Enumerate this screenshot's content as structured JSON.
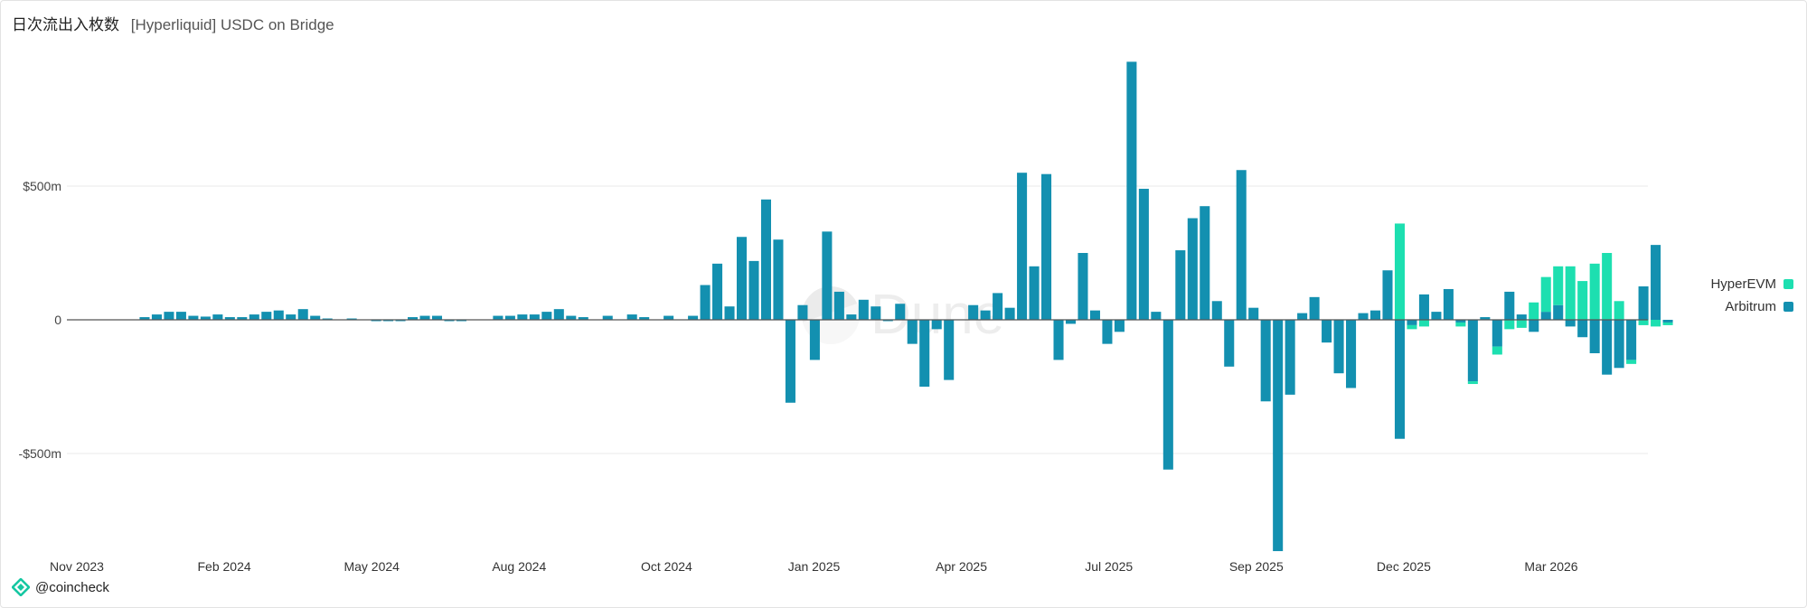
{
  "header": {
    "title": "日次流出入枚数",
    "subtitle": "[Hyperliquid] USDC on Bridge"
  },
  "watermark": "Dune",
  "footer": {
    "handle": "@coincheck"
  },
  "legend": [
    {
      "label": "HyperEVM",
      "color": "#1ddfb0"
    },
    {
      "label": "Arbitrum",
      "color": "#1390b0"
    }
  ],
  "colors": {
    "hyperevm": "#1ddfb0",
    "arbitrum": "#1390b0",
    "grid": "#e8e8e8",
    "zero": "#555555"
  },
  "chart_data": {
    "type": "bar",
    "stacked": true,
    "x_unit": "week",
    "x_start": "2023-11-06",
    "x_end": "2026-05-04",
    "xticks": [
      "Nov 2023",
      "Feb 2024",
      "May 2024",
      "Aug 2024",
      "Oct 2024",
      "Jan 2025",
      "Apr 2025",
      "Jul 2025",
      "Sep 2025",
      "Dec 2025",
      "Mar 2026"
    ],
    "yticks": [
      {
        "value": 500,
        "label": "$500m"
      },
      {
        "value": 0,
        "label": "0"
      },
      {
        "value": -500,
        "label": "-$500m"
      }
    ],
    "ylabel_unit": "$m",
    "ylim": [
      -880,
      980
    ],
    "grid": true,
    "legend_position": "right",
    "series": [
      {
        "name": "Arbitrum",
        "values": [
          0,
          0,
          0,
          10,
          20,
          30,
          30,
          15,
          12,
          20,
          10,
          10,
          20,
          30,
          35,
          20,
          40,
          15,
          5,
          0,
          5,
          0,
          -5,
          -5,
          -5,
          10,
          15,
          15,
          -5,
          -5,
          0,
          0,
          15,
          15,
          20,
          20,
          30,
          40,
          15,
          10,
          0,
          15,
          0,
          20,
          10,
          0,
          15,
          0,
          15,
          130,
          210,
          50,
          310,
          220,
          450,
          300,
          -310,
          55,
          -150,
          330,
          105,
          20,
          75,
          50,
          -5,
          60,
          -90,
          -250,
          -35,
          -225,
          0,
          55,
          35,
          100,
          45,
          550,
          200,
          545,
          -150,
          -15,
          250,
          35,
          -90,
          -45,
          965,
          490,
          30,
          -560,
          260,
          380,
          425,
          70,
          -175,
          560,
          45,
          -305,
          -865,
          -280,
          25,
          85,
          -85,
          -200,
          -255,
          25,
          35,
          185,
          -445,
          -20,
          95,
          30,
          115,
          -10,
          -230,
          10,
          -100,
          105,
          20,
          -45,
          30,
          55,
          -25,
          -65,
          -125,
          -205,
          -180,
          -150,
          125,
          280,
          -10
        ],
        "_order": "Arbitrum first week 2023-11-06"
      },
      {
        "name": "HyperEVM",
        "values": [
          0,
          0,
          0,
          0,
          0,
          0,
          0,
          0,
          0,
          0,
          0,
          0,
          0,
          0,
          0,
          0,
          0,
          0,
          0,
          0,
          0,
          0,
          0,
          0,
          0,
          0,
          0,
          0,
          0,
          0,
          0,
          0,
          0,
          0,
          0,
          0,
          0,
          0,
          0,
          0,
          0,
          0,
          0,
          0,
          0,
          0,
          0,
          0,
          0,
          0,
          0,
          0,
          0,
          0,
          0,
          0,
          0,
          0,
          0,
          0,
          0,
          0,
          0,
          0,
          0,
          0,
          0,
          0,
          0,
          0,
          0,
          0,
          0,
          0,
          0,
          0,
          0,
          0,
          0,
          0,
          0,
          0,
          0,
          0,
          0,
          0,
          0,
          0,
          0,
          0,
          0,
          0,
          0,
          0,
          0,
          0,
          0,
          0,
          0,
          0,
          0,
          0,
          0,
          0,
          0,
          0,
          360,
          -15,
          -25,
          0,
          0,
          -15,
          -10,
          0,
          -30,
          -35,
          -30,
          65,
          130,
          145,
          200,
          145,
          210,
          250,
          70,
          -15,
          -20,
          -25,
          -10
        ]
      }
    ]
  }
}
